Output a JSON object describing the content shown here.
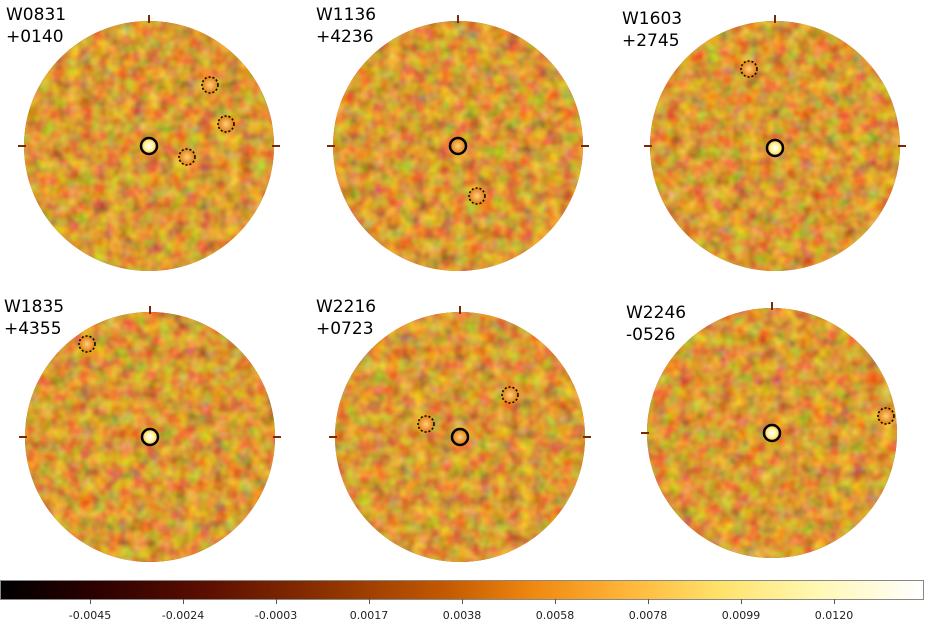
{
  "panels": [
    {
      "name": "W0831",
      "dec": "+0140"
    },
    {
      "name": "W1136",
      "dec": "+4236"
    },
    {
      "name": "W1603",
      "dec": "+2745"
    },
    {
      "name": "W1835",
      "dec": "+4355"
    },
    {
      "name": "W2216",
      "dec": "+0723"
    },
    {
      "name": "W2246",
      "dec": "-0526"
    }
  ],
  "colorbar": {
    "ticks": [
      "-0.0045",
      "-0.0024",
      "-0.0003",
      "0.0017",
      "0.0038",
      "0.0058",
      "0.0078",
      "0.0099",
      "0.0120"
    ]
  },
  "colors": {
    "background": "#ffffff",
    "map_base": "#a0420a",
    "source_marker": "#000000"
  }
}
